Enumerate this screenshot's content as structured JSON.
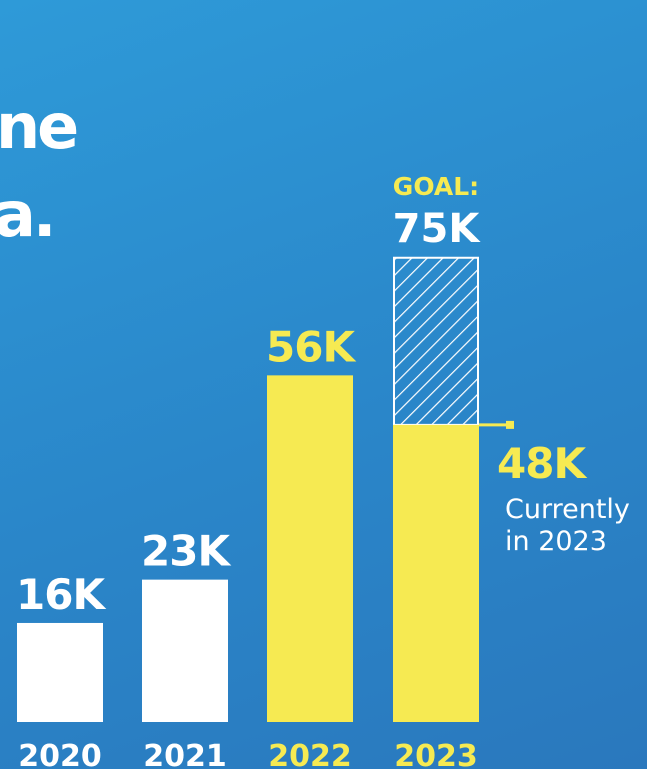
{
  "headline": {
    "line1": "ne",
    "line2": "a."
  },
  "colors": {
    "background": "#2a88cc",
    "white_bar": "#ffffff",
    "yellow_bar": "#f6ea52",
    "yellow_text": "#f6ea52",
    "white_text": "#ffffff"
  },
  "chart_data": {
    "type": "bar",
    "categories": [
      "2020",
      "2021",
      "2022",
      "2023"
    ],
    "values": [
      16,
      23,
      56,
      48
    ],
    "value_labels": [
      "16K",
      "23K",
      "56K",
      "48K"
    ],
    "bar_colors": [
      "#ffffff",
      "#ffffff",
      "#f6ea52",
      "#f6ea52"
    ],
    "unit": "K",
    "goal": {
      "category": "2023",
      "value": 75,
      "label_prefix": "GOAL:",
      "label_value": "75K"
    },
    "current_note": [
      "Currently",
      "in 2023"
    ],
    "ylim": [
      0,
      75
    ],
    "grid": false,
    "legend": "none"
  }
}
